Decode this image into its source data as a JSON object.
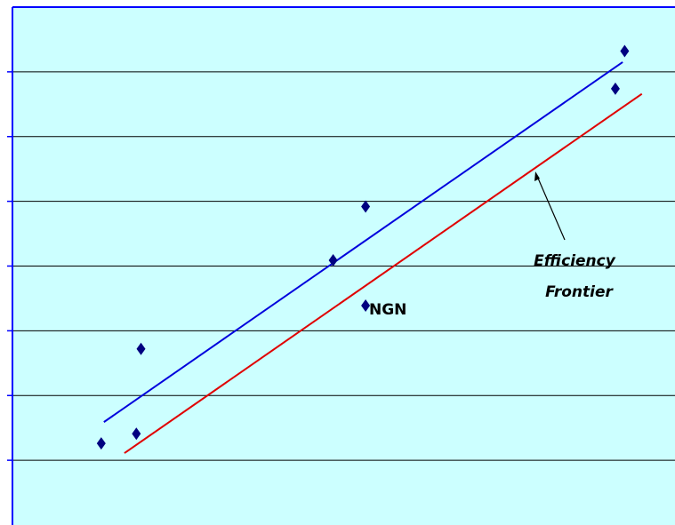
{
  "chart_data": {
    "type": "scatter",
    "title": "",
    "xlabel": "",
    "ylabel": "",
    "xlim": [
      0,
      100
    ],
    "ylim": [
      0,
      8
    ],
    "grid": "horizontal",
    "colors": {
      "plot_background": "#ccffff",
      "frame": "#0000ff",
      "gridline": "#000000",
      "markers": "#000080",
      "trend_line": "#0000dd",
      "frontier_line": "#e00000"
    },
    "points": [
      {
        "x": 13.4,
        "y": 1.26
      },
      {
        "x": 18.7,
        "y": 1.41
      },
      {
        "x": 19.4,
        "y": 2.72
      },
      {
        "x": 48.4,
        "y": 4.09
      },
      {
        "x": 53.3,
        "y": 3.39
      },
      {
        "x": 53.3,
        "y": 4.92
      },
      {
        "x": 91.0,
        "y": 6.74
      },
      {
        "x": 92.4,
        "y": 7.32
      }
    ],
    "lines": [
      {
        "role": "trend",
        "x": [
          13.8,
          92.1
        ],
        "y": [
          1.59,
          7.15
        ]
      },
      {
        "role": "frontier",
        "x": [
          16.9,
          95.0
        ],
        "y": [
          1.11,
          6.66
        ]
      }
    ],
    "annotations": {
      "efficiency_frontier_line1": "Efficiency",
      "efficiency_frontier_line2": "Frontier",
      "ngn": "NGN"
    }
  }
}
